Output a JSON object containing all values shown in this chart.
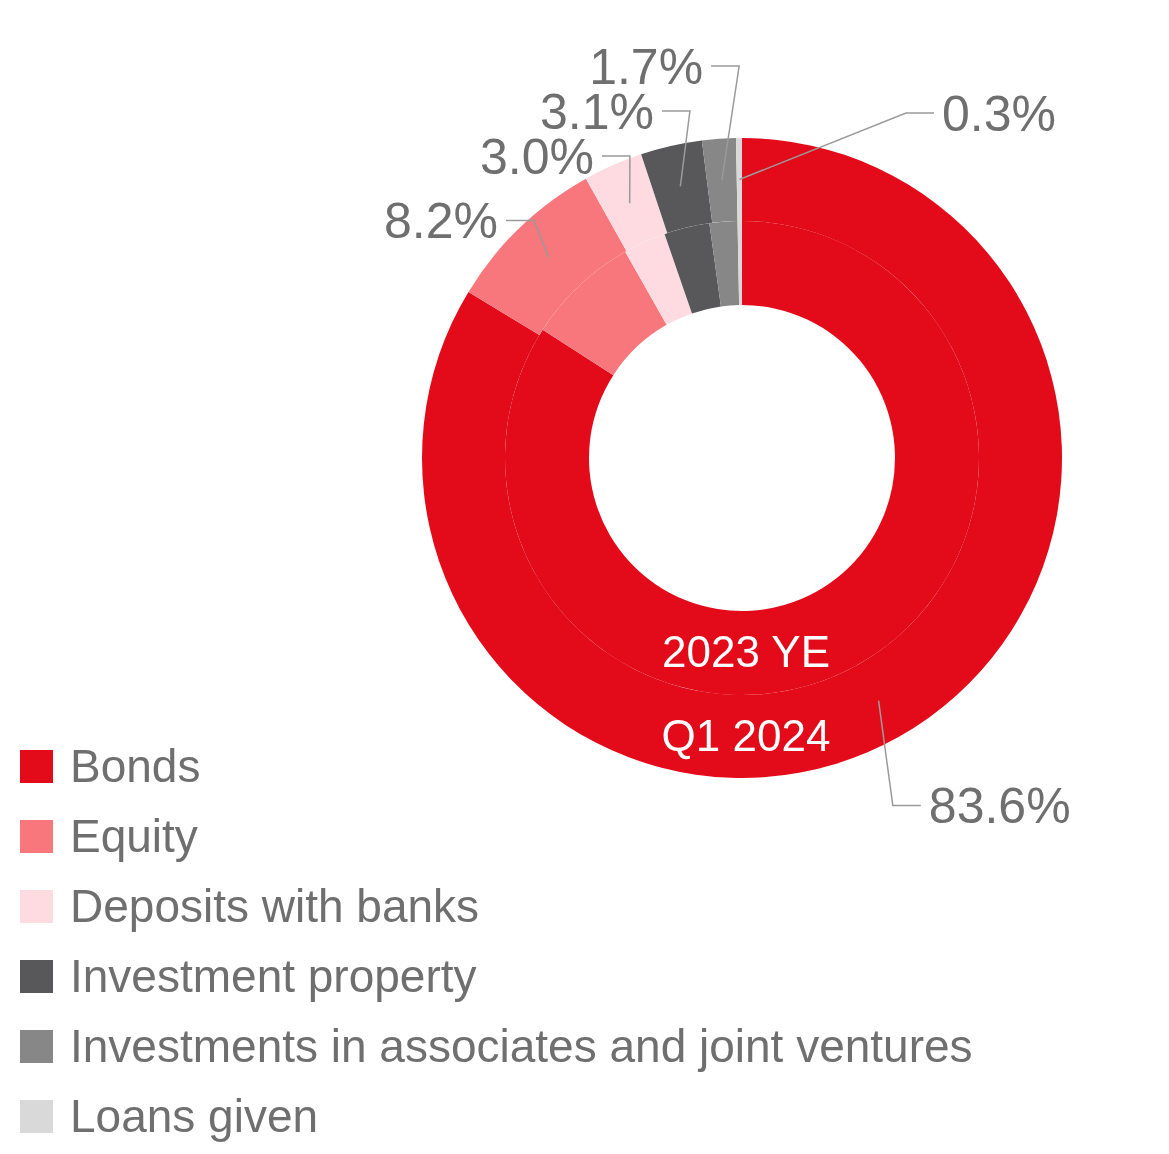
{
  "chart_data": {
    "type": "donut",
    "categories": [
      "Bonds",
      "Equity",
      "Deposits with banks",
      "Investment property",
      "Investments in associates and joint ventures",
      "Loans given"
    ],
    "colors": [
      "#e30b1a",
      "#f8777c",
      "#fddbe0",
      "#58585a",
      "#878787",
      "#d9d9d9"
    ],
    "series": [
      {
        "name": "2023 YE",
        "values": [
          84.1,
          7.7,
          2.9,
          3.1,
          1.9,
          0.3
        ]
      },
      {
        "name": "Q1 2024",
        "values": [
          83.6,
          8.2,
          3.0,
          3.1,
          1.7,
          0.3
        ],
        "value_labels": [
          "83.6%",
          "8.2%",
          "3.0%",
          "3.1%",
          "1.7%",
          "0.3%"
        ]
      }
    ],
    "legend": "bottom left"
  }
}
